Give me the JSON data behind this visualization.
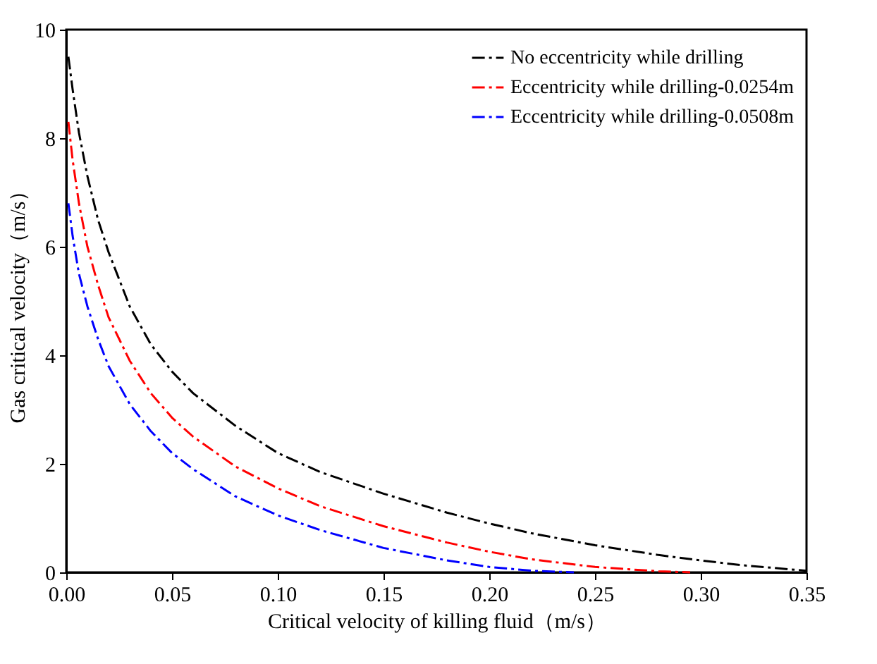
{
  "chart_data": {
    "type": "line",
    "xlabel": "Critical velocity of killing fluid（m/s）",
    "ylabel": "Gas critical velocity（m/s）",
    "xlim": [
      0,
      0.35
    ],
    "xticks": [
      {
        "value": 0,
        "label": "0.00"
      },
      0.05,
      {
        "value": 0.1,
        "label": "0.10"
      },
      0.15,
      {
        "value": 0.2,
        "label": "0.20"
      },
      0.25,
      {
        "value": 0.3,
        "label": "0.30"
      },
      0.35
    ],
    "ylim": [
      0,
      10
    ],
    "yticks": [
      0,
      2,
      4,
      6,
      8,
      10
    ],
    "grid": false,
    "legend": "top right",
    "line_style": "dashed",
    "marker": "none",
    "series": [
      {
        "name": "No eccentricity while drilling",
        "color": "#000000",
        "x": [
          0.001,
          0.003,
          0.006,
          0.01,
          0.015,
          0.02,
          0.03,
          0.04,
          0.05,
          0.06,
          0.08,
          0.1,
          0.12,
          0.15,
          0.18,
          0.2,
          0.22,
          0.25,
          0.28,
          0.3,
          0.32,
          0.35
        ],
        "values": [
          9.5,
          8.9,
          8.1,
          7.3,
          6.5,
          5.9,
          4.9,
          4.2,
          3.7,
          3.3,
          2.7,
          2.2,
          1.85,
          1.45,
          1.1,
          0.9,
          0.72,
          0.5,
          0.32,
          0.22,
          0.13,
          0.03
        ]
      },
      {
        "name": "Eccentricity while drilling-0.0254m",
        "color": "#ff0000",
        "x": [
          0.001,
          0.003,
          0.006,
          0.01,
          0.015,
          0.02,
          0.03,
          0.04,
          0.05,
          0.06,
          0.08,
          0.1,
          0.12,
          0.15,
          0.18,
          0.2,
          0.22,
          0.25,
          0.28,
          0.295
        ],
        "values": [
          8.3,
          7.6,
          6.8,
          6.0,
          5.3,
          4.7,
          3.9,
          3.3,
          2.85,
          2.5,
          1.95,
          1.55,
          1.22,
          0.85,
          0.55,
          0.38,
          0.24,
          0.1,
          0.02,
          0
        ]
      },
      {
        "name": "Eccentricity while drilling-0.0508m",
        "color": "#0000ff",
        "x": [
          0.001,
          0.003,
          0.006,
          0.01,
          0.015,
          0.02,
          0.03,
          0.04,
          0.05,
          0.06,
          0.08,
          0.1,
          0.12,
          0.15,
          0.18,
          0.2,
          0.22,
          0.24
        ],
        "values": [
          6.8,
          6.2,
          5.5,
          4.9,
          4.3,
          3.8,
          3.1,
          2.6,
          2.2,
          1.9,
          1.4,
          1.05,
          0.78,
          0.45,
          0.22,
          0.1,
          0.03,
          0
        ]
      }
    ]
  }
}
